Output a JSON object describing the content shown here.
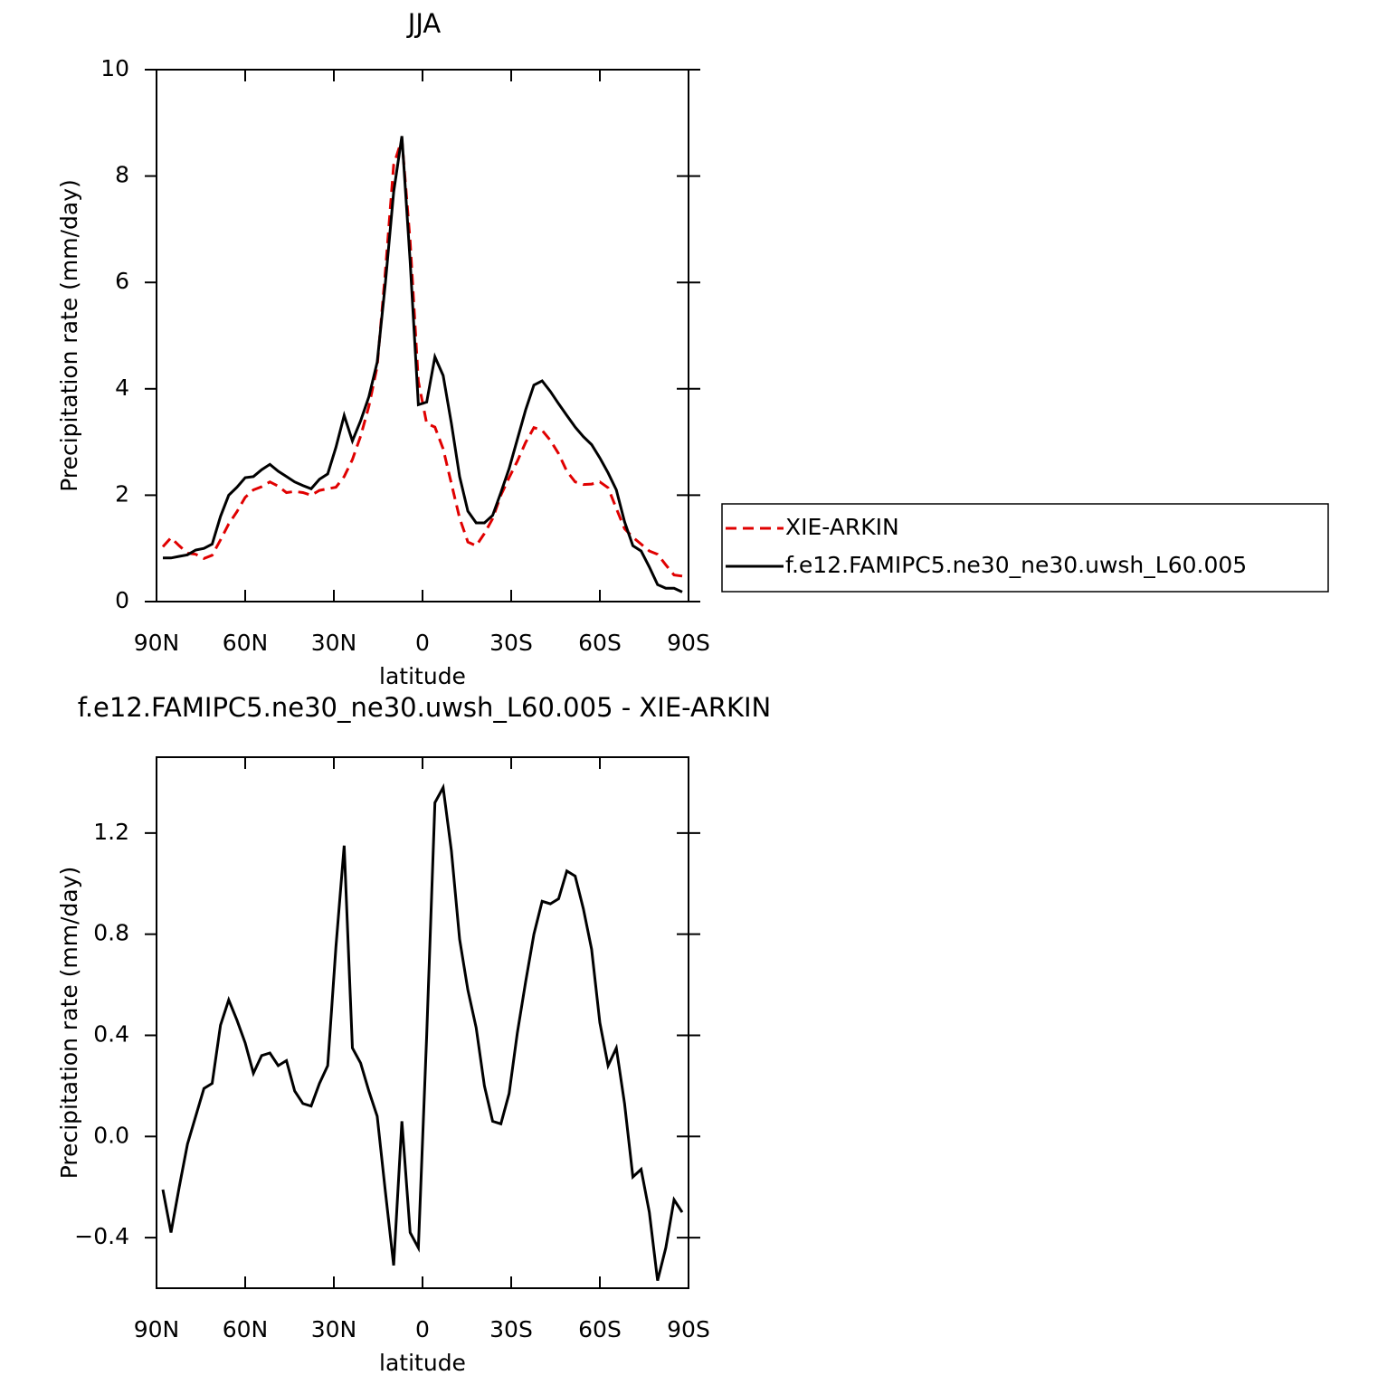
{
  "chart_data": [
    {
      "type": "line",
      "title": "JJA",
      "xlabel": "latitude",
      "ylabel": "Precipitation rate (mm/day)",
      "x": [
        87.86,
        85.1,
        82.31,
        79.53,
        76.74,
        73.95,
        71.16,
        68.37,
        65.58,
        62.79,
        60.0,
        57.21,
        54.42,
        51.63,
        48.84,
        46.04,
        43.25,
        40.46,
        37.67,
        34.88,
        32.09,
        29.3,
        26.51,
        23.72,
        20.93,
        18.14,
        15.35,
        12.56,
        9.77,
        6.98,
        4.19,
        1.4,
        -1.4,
        -4.19,
        -6.98,
        -9.77,
        -12.56,
        -15.35,
        -18.14,
        -20.93,
        -23.72,
        -26.51,
        -29.3,
        -32.09,
        -34.88,
        -37.67,
        -40.46,
        -43.25,
        -46.04,
        -48.84,
        -51.63,
        -54.42,
        -57.21,
        -60.0,
        -62.79,
        -65.58,
        -68.37,
        -71.16,
        -73.95,
        -76.74,
        -79.53,
        -82.31,
        -85.1,
        -87.86
      ],
      "series": [
        {
          "name": "XIE-ARKIN",
          "color": "#e00000",
          "style": "dashed",
          "values": [
            1.03,
            1.2,
            1.05,
            0.91,
            0.89,
            0.81,
            0.87,
            1.16,
            1.46,
            1.69,
            1.96,
            2.1,
            2.16,
            2.25,
            2.17,
            2.05,
            2.07,
            2.05,
            2.0,
            2.09,
            2.12,
            2.15,
            2.35,
            2.67,
            3.11,
            3.67,
            4.42,
            6.22,
            8.21,
            8.69,
            6.78,
            4.14,
            3.35,
            3.28,
            2.87,
            2.22,
            1.57,
            1.12,
            1.05,
            1.28,
            1.56,
            2.0,
            2.33,
            2.64,
            2.99,
            3.27,
            3.22,
            3.03,
            2.78,
            2.45,
            2.25,
            2.2,
            2.21,
            2.25,
            2.14,
            1.75,
            1.37,
            1.21,
            1.08,
            0.95,
            0.89,
            0.69,
            0.5,
            0.48
          ]
        },
        {
          "name": "f.e12.FAMIPC5.ne30_ne30.uwsh_L60.005",
          "color": "#000000",
          "style": "solid",
          "values": [
            0.82,
            0.82,
            0.85,
            0.88,
            0.97,
            1.0,
            1.08,
            1.6,
            2.0,
            2.15,
            2.33,
            2.35,
            2.48,
            2.58,
            2.45,
            2.35,
            2.25,
            2.18,
            2.12,
            2.3,
            2.4,
            2.9,
            3.5,
            3.02,
            3.4,
            3.85,
            4.5,
            6.0,
            7.7,
            8.75,
            6.4,
            3.7,
            3.75,
            4.6,
            4.25,
            3.35,
            2.35,
            1.7,
            1.48,
            1.48,
            1.62,
            2.05,
            2.5,
            3.05,
            3.6,
            4.07,
            4.15,
            3.95,
            3.72,
            3.5,
            3.28,
            3.1,
            2.95,
            2.7,
            2.42,
            2.1,
            1.5,
            1.05,
            0.95,
            0.65,
            0.32,
            0.25,
            0.25,
            0.18
          ]
        }
      ],
      "xlim": [
        90,
        -90
      ],
      "xticks": [
        {
          "value": 90,
          "label": "90N"
        },
        {
          "value": 60,
          "label": "60N"
        },
        {
          "value": 30,
          "label": "30N"
        },
        0,
        {
          "value": -30,
          "label": "30S"
        },
        {
          "value": -60,
          "label": "60S"
        },
        {
          "value": -90,
          "label": "90S"
        }
      ],
      "ylim": [
        0,
        10
      ],
      "yticks": [
        0,
        2,
        4,
        6,
        8,
        10
      ],
      "legend": "right"
    },
    {
      "type": "line",
      "title": "f.e12.FAMIPC5.ne30_ne30.uwsh_L60.005 - XIE-ARKIN",
      "xlabel": "latitude",
      "ylabel": "Precipitation rate (mm/day)",
      "x": [
        87.86,
        85.1,
        82.31,
        79.53,
        76.74,
        73.95,
        71.16,
        68.37,
        65.58,
        62.79,
        60.0,
        57.21,
        54.42,
        51.63,
        48.84,
        46.04,
        43.25,
        40.46,
        37.67,
        34.88,
        32.09,
        29.3,
        26.51,
        23.72,
        20.93,
        18.14,
        15.35,
        12.56,
        9.77,
        6.98,
        4.19,
        1.4,
        -1.4,
        -4.19,
        -6.98,
        -9.77,
        -12.56,
        -15.35,
        -18.14,
        -20.93,
        -23.72,
        -26.51,
        -29.3,
        -32.09,
        -34.88,
        -37.67,
        -40.46,
        -43.25,
        -46.04,
        -48.84,
        -51.63,
        -54.42,
        -57.21,
        -60.0,
        -62.79,
        -65.58,
        -68.37,
        -71.16,
        -73.95,
        -76.74,
        -79.53,
        -82.31,
        -85.1,
        -87.86
      ],
      "color": "#000000",
      "values": [
        -0.21,
        -0.38,
        -0.2,
        -0.03,
        0.08,
        0.19,
        0.21,
        0.44,
        0.54,
        0.46,
        0.37,
        0.25,
        0.32,
        0.33,
        0.28,
        0.3,
        0.18,
        0.13,
        0.12,
        0.21,
        0.28,
        0.75,
        1.15,
        0.35,
        0.29,
        0.18,
        0.08,
        -0.22,
        -0.51,
        0.06,
        -0.38,
        -0.44,
        0.4,
        1.32,
        1.38,
        1.13,
        0.78,
        0.58,
        0.43,
        0.2,
        0.06,
        0.05,
        0.17,
        0.41,
        0.61,
        0.8,
        0.93,
        0.92,
        0.94,
        1.05,
        1.03,
        0.9,
        0.74,
        0.45,
        0.28,
        0.35,
        0.13,
        -0.16,
        -0.13,
        -0.3,
        -0.57,
        -0.44,
        -0.25,
        -0.3
      ],
      "xlim": [
        90,
        -90
      ],
      "xticks": [
        {
          "value": 90,
          "label": "90N"
        },
        {
          "value": 60,
          "label": "60N"
        },
        {
          "value": 30,
          "label": "30N"
        },
        0,
        {
          "value": -30,
          "label": "30S"
        },
        {
          "value": -60,
          "label": "60S"
        },
        {
          "value": -90,
          "label": "90S"
        }
      ],
      "ylim": [
        -0.6,
        1.5
      ],
      "yticks": [
        {
          "value": -0.4,
          "label": "−0.4"
        },
        {
          "value": 0,
          "label": "0.0"
        },
        0.4,
        0.8,
        1.2
      ]
    }
  ]
}
